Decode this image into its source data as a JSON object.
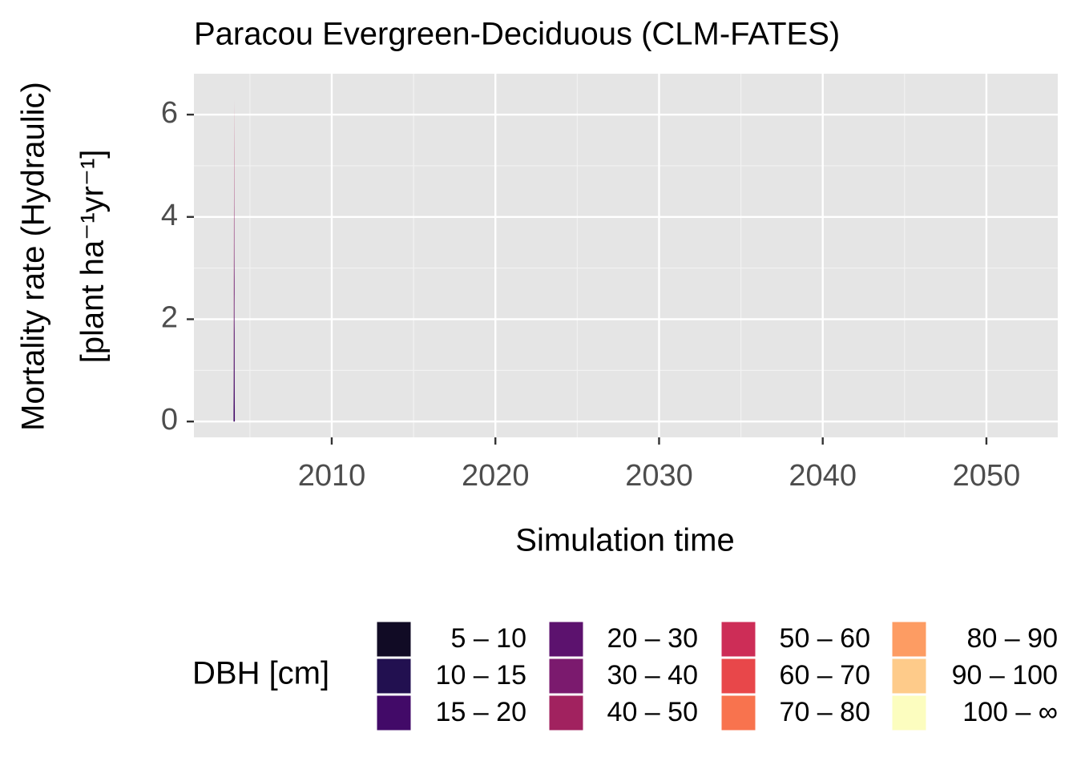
{
  "chart_data": {
    "type": "area",
    "stacked": true,
    "title": "Paracou Evergreen-Deciduous (CLM-FATES)",
    "x_label": "Simulation time",
    "y_label": [
      "Mortality rate (Hydraulic)",
      "[plant ha⁻¹yr⁻¹]"
    ],
    "legend_title": "DBH [cm]",
    "x": [
      2004.0,
      2004.04,
      2004.08,
      2054
    ],
    "series": [
      {
        "name": "5 – 10",
        "color": "#110b25",
        "values": [
          0,
          0,
          0,
          0
        ]
      },
      {
        "name": "10 – 15",
        "color": "#221050",
        "values": [
          0,
          0,
          0,
          0
        ]
      },
      {
        "name": "15 – 20",
        "color": "#420a68",
        "values": [
          0,
          2.5,
          0,
          0
        ]
      },
      {
        "name": "20 – 30",
        "color": "#5c126e",
        "values": [
          0,
          1.5,
          0,
          0
        ]
      },
      {
        "name": "30 – 40",
        "color": "#7b1a6e",
        "values": [
          0,
          1.2,
          0,
          0
        ]
      },
      {
        "name": "40 – 50",
        "color": "#a1225f",
        "values": [
          0,
          0.8,
          0,
          0
        ]
      },
      {
        "name": "50 – 60",
        "color": "#cd2d57",
        "values": [
          0,
          0.3,
          0,
          0
        ]
      },
      {
        "name": "60 – 70",
        "color": "#e8474a",
        "values": [
          0,
          0,
          0,
          0
        ]
      },
      {
        "name": "70 – 80",
        "color": "#f8734e",
        "values": [
          0,
          0,
          0,
          0
        ]
      },
      {
        "name": "80 – 90",
        "color": "#fd9c63",
        "values": [
          0,
          0,
          0,
          0
        ]
      },
      {
        "name": "90 – 100",
        "color": "#fecb8a",
        "values": [
          0,
          0,
          0,
          0
        ]
      },
      {
        "name": "100 – ∞",
        "color": "#fcfdbf",
        "values": [
          0,
          0,
          0,
          0
        ]
      }
    ],
    "xlim": [
      2001.58,
      2054.36
    ],
    "ylim": [
      -0.31,
      6.8
    ],
    "xticks": [
      2010,
      2020,
      2030,
      2040,
      2050
    ],
    "yticks": [
      0,
      2,
      4,
      6
    ],
    "grid": true
  }
}
